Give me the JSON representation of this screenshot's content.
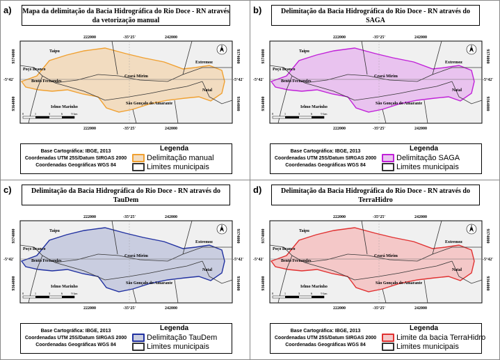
{
  "panels": [
    {
      "label": "a)",
      "title": "Mapa da delimitação da Bacia Hidrográfica do Rio Doce - RN através da vetorização manual",
      "fill": "#f2dcc0",
      "stroke": "#f0a030",
      "legend_basin": "Delimitação manual",
      "lon_rot": "-5°42'"
    },
    {
      "label": "b)",
      "title": "Delimitação da Bacia Hidrográfica do Rio Doce - RN através do SAGA",
      "fill": "#e9c3ef",
      "stroke": "#c020d8",
      "legend_basin": "Delimitação SAGA",
      "lon_rot": "-5°42'"
    },
    {
      "label": "c)",
      "title": "Delimitação da Bacia Hidrográfica do Rio Doce - RN através do TauDem",
      "fill": "#c9cde0",
      "stroke": "#2030a0",
      "legend_basin": "Delimitação TauDem",
      "lon_rot": "-5°42'"
    },
    {
      "label": "d)",
      "title": "Delimitação da Bacia Hidrográfica do Rio Doce - RN através do TerraHidro",
      "fill": "#f4c8c8",
      "stroke": "#e03030",
      "legend_basin": "Limite da bacia TerraHidro",
      "lon_rot": "-5°42'"
    }
  ],
  "map": {
    "x_ticks": [
      "222000",
      "-35°25'",
      "242000"
    ],
    "y_tick_top": "9374000",
    "y_tick_bottom": "9364000",
    "lat_label": "-5°42'",
    "places": {
      "taipu": "Taipu",
      "poco_branco": "Poço Branco",
      "bento": "Bento Fernandes",
      "ielmo": "Ielmo Marinho",
      "ceara": "Ceará Mirim",
      "sao_goncalo": "São Gonçalo do Amarante",
      "extremoz": "Extremoz",
      "natal": "Natal"
    },
    "scale_labels": [
      "0",
      "1",
      "3",
      "6",
      "9 km"
    ],
    "north": "N"
  },
  "legend": {
    "title": "Legenda",
    "base": [
      "Base Cartográfica: IBGE, 2013",
      "Coordenadas UTM 25S/Datum SIRGAS 2000",
      "Coordenadas Geográficas WGS 84"
    ],
    "municipal": "Limites municipais",
    "municipal_color": "#333333"
  }
}
